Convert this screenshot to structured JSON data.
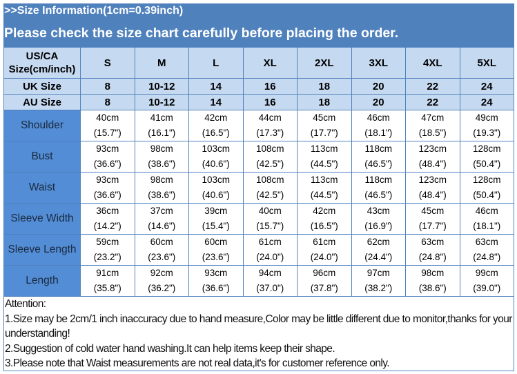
{
  "header": {
    "title": ">>Size Information(1cm=0.39inch)",
    "subtitle": "Please check the size chart carefully before placing the order."
  },
  "colors": {
    "header_bg": "#4f81bd",
    "size_rows_bg": "#c5d9f1",
    "label_col_bg": "#538dd5",
    "border": "#4f81bd"
  },
  "table": {
    "size_rows": [
      {
        "label": "US/CA Size(cm/inch)",
        "values": [
          "S",
          "M",
          "L",
          "XL",
          "2XL",
          "3XL",
          "4XL",
          "5XL"
        ]
      },
      {
        "label": "UK Size",
        "values": [
          "8",
          "10-12",
          "14",
          "16",
          "18",
          "20",
          "22",
          "24"
        ]
      },
      {
        "label": "AU Size",
        "values": [
          "8",
          "10-12",
          "14",
          "16",
          "18",
          "20",
          "22",
          "24"
        ]
      }
    ],
    "measure_rows": [
      {
        "label": "Shoulder",
        "cm": [
          "40cm",
          "41cm",
          "42cm",
          "44cm",
          "45cm",
          "46cm",
          "47cm",
          "49cm"
        ],
        "inch": [
          "(15.7\")",
          "(16.1\")",
          "(16.5\")",
          "(17.3\")",
          "(17.7\")",
          "(18.1\")",
          "(18.5\")",
          "(19.3\")"
        ]
      },
      {
        "label": "Bust",
        "cm": [
          "93cm",
          "98cm",
          "103cm",
          "108cm",
          "113cm",
          "118cm",
          "123cm",
          "128cm"
        ],
        "inch": [
          "(36.6\")",
          "(38.6\")",
          "(40.6\")",
          "(42.5\")",
          "(44.5\")",
          "(46.5\")",
          "(48.4\")",
          "(50.4\")"
        ]
      },
      {
        "label": "Waist",
        "cm": [
          "93cm",
          "98cm",
          "103cm",
          "108cm",
          "113cm",
          "118cm",
          "123cm",
          "128cm"
        ],
        "inch": [
          "(36.6\")",
          "(38.6\")",
          "(40.6\")",
          "(42.5\")",
          "(44.5\")",
          "(46.5\")",
          "(48.4\")",
          "(50.4\")"
        ]
      },
      {
        "label": "Sleeve Width",
        "cm": [
          "36cm",
          "37cm",
          "39cm",
          "40cm",
          "42cm",
          "43cm",
          "45cm",
          "46cm"
        ],
        "inch": [
          "(14.2\")",
          "(14.6\")",
          "(15.4\")",
          "(15.7\")",
          "(16.5\")",
          "(16.9\")",
          "(17.7\")",
          "(18.1\")"
        ]
      },
      {
        "label": "Sleeve Length",
        "cm": [
          "59cm",
          "60cm",
          "60cm",
          "61cm",
          "61cm",
          "62cm",
          "63cm",
          "63cm"
        ],
        "inch": [
          "(23.2\")",
          "(23.6\")",
          "(23.6\")",
          "(24.0\")",
          "(24.0\")",
          "(24.4\")",
          "(24.8\")",
          "(24.8\")"
        ]
      },
      {
        "label": "Length",
        "cm": [
          "91cm",
          "92cm",
          "93cm",
          "94cm",
          "96cm",
          "97cm",
          "98cm",
          "99cm"
        ],
        "inch": [
          "(35.8\")",
          "(36.2\")",
          "(36.6\")",
          "(37.0\")",
          "(37.8\")",
          "(38.2\")",
          "(38.6\")",
          "(39.0\")"
        ]
      }
    ]
  },
  "attention": {
    "title": "Attention:",
    "notes": [
      "1.Size may be 2cm/1 inch inaccuracy due to hand measure,Color may be little different due to monitor,thanks for your understanding!",
      "2.Suggestion of cold water hand washing.It can help items keep their shape.",
      "3.Please note that Waist measurements are not real data,it's for customer reference only."
    ]
  }
}
